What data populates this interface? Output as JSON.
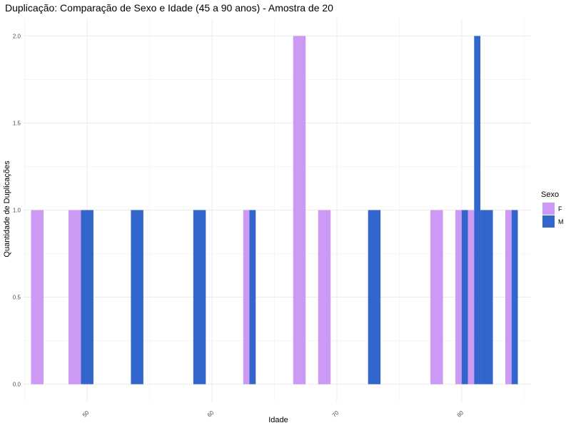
{
  "chart_data": {
    "type": "bar",
    "title": "Duplicação: Comparação de Sexo e Idade (45 a 90 anos) - Amostra de 20",
    "xlabel": "Idade",
    "ylabel": "Quantidade de Duplicações",
    "xlim": [
      44.9,
      85.5
    ],
    "ylim": [
      -0.1,
      2.1
    ],
    "x_ticks": [
      50,
      60,
      70,
      80
    ],
    "y_ticks": [
      0,
      0.5,
      1.0,
      1.5,
      2.0
    ],
    "x_tick_labels": [
      "50",
      "60",
      "70",
      "80"
    ],
    "y_tick_labels": [
      "0.0",
      "0.5",
      "1.0",
      "1.5",
      "2.0"
    ],
    "grid": true,
    "legend": {
      "title": "Sexo",
      "position": "right"
    },
    "series": [
      {
        "name": "F",
        "color": "#cc99f5",
        "bars": [
          {
            "x0": 45.5,
            "x1": 46.5,
            "value": 1
          },
          {
            "x0": 48.5,
            "x1": 49.5,
            "value": 1
          },
          {
            "x0": 62.5,
            "x1": 63.0,
            "value": 1
          },
          {
            "x0": 66.5,
            "x1": 67.5,
            "value": 2
          },
          {
            "x0": 68.5,
            "x1": 69.5,
            "value": 1
          },
          {
            "x0": 77.5,
            "x1": 78.5,
            "value": 1
          },
          {
            "x0": 79.5,
            "x1": 80.0,
            "value": 1
          },
          {
            "x0": 80.5,
            "x1": 81.0,
            "value": 1
          },
          {
            "x0": 83.5,
            "x1": 84.0,
            "value": 1
          }
        ]
      },
      {
        "name": "M",
        "color": "#3366cc",
        "bars": [
          {
            "x0": 49.5,
            "x1": 50.5,
            "value": 1
          },
          {
            "x0": 53.5,
            "x1": 54.5,
            "value": 1
          },
          {
            "x0": 58.5,
            "x1": 59.5,
            "value": 1
          },
          {
            "x0": 63.0,
            "x1": 63.5,
            "value": 1
          },
          {
            "x0": 72.5,
            "x1": 73.5,
            "value": 1
          },
          {
            "x0": 80.0,
            "x1": 80.5,
            "value": 1
          },
          {
            "x0": 81.0,
            "x1": 81.5,
            "value": 2
          },
          {
            "x0": 81.5,
            "x1": 82.5,
            "value": 1
          },
          {
            "x0": 84.0,
            "x1": 84.5,
            "value": 1
          }
        ]
      }
    ]
  }
}
